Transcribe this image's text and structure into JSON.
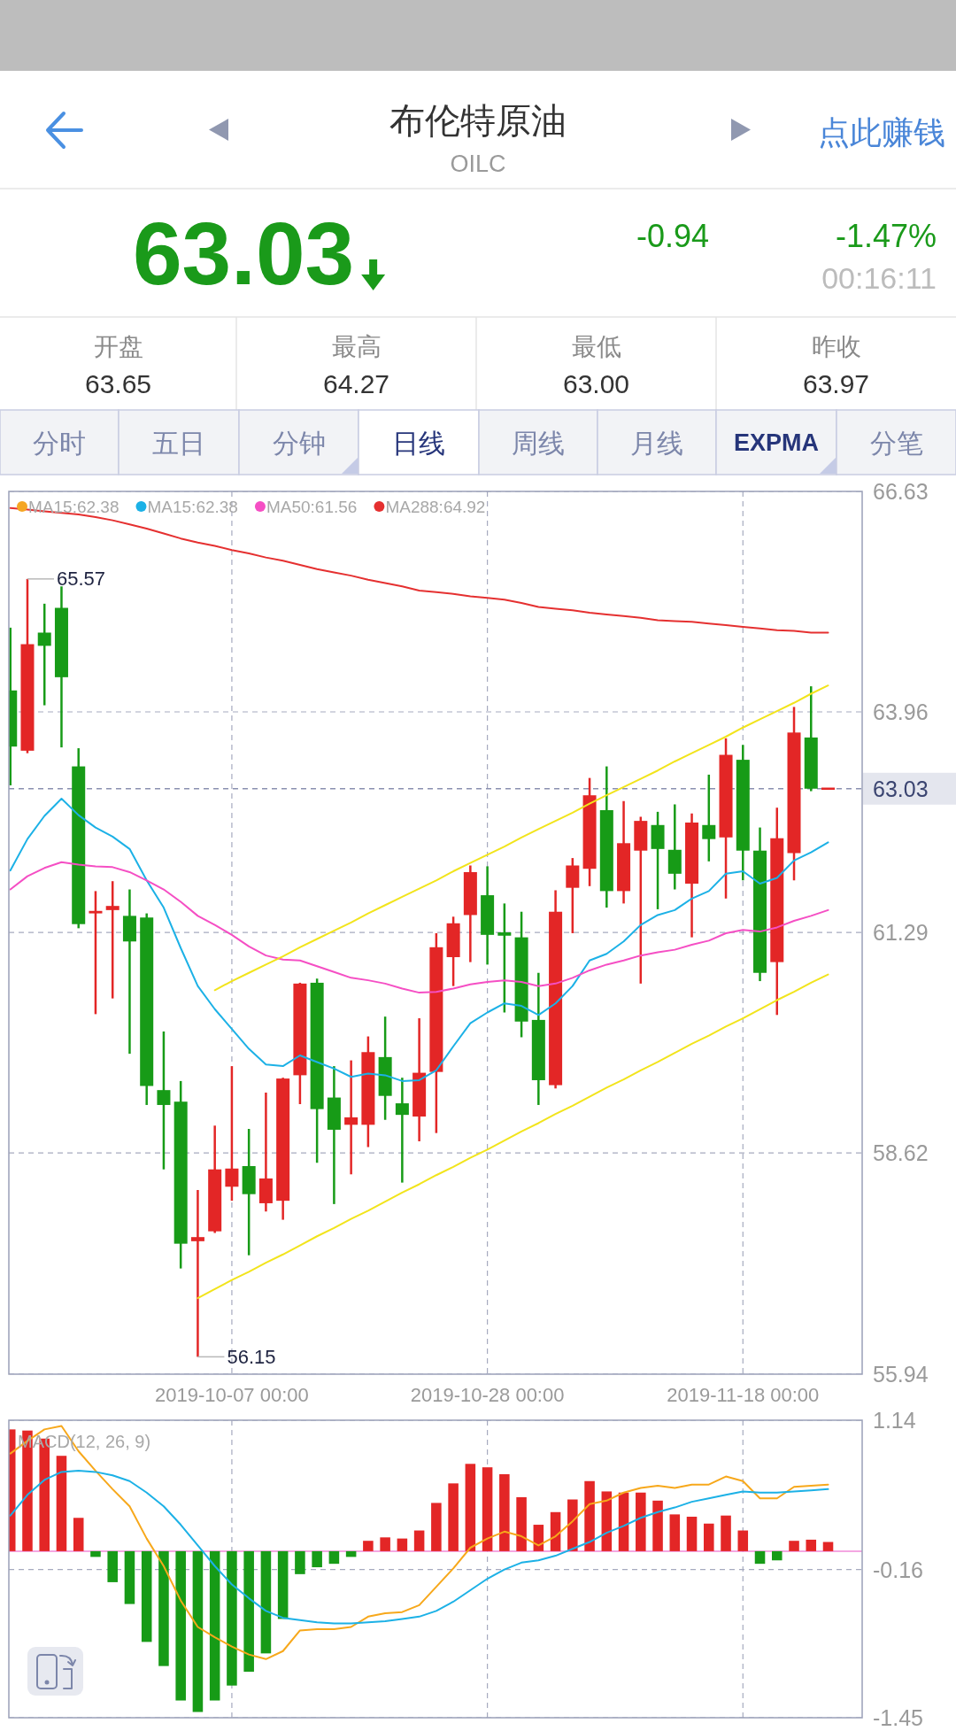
{
  "chart_data": [
    {
      "type": "other",
      "title": "布伦特原油",
      "subtitle": "OILC",
      "annotations": [
        "点此赚钱",
        "63.03",
        "-0.94",
        "-1.47%",
        "00:16:11",
        "开盘",
        "63.65",
        "最高",
        "64.27",
        "最低",
        "63.00",
        "昨收",
        "63.97",
        "分时",
        "五日",
        "分钟",
        "日线",
        "周线",
        "月线",
        "EXPMA",
        "分笔"
      ]
    },
    {
      "type": "candlestick",
      "categories": [
        null,
        null,
        null,
        null,
        null,
        null,
        null,
        null,
        null,
        null,
        null,
        null,
        null,
        "2019-10-07 00:00",
        null,
        null,
        null,
        null,
        null,
        null,
        null,
        null,
        null,
        null,
        null,
        null,
        null,
        null,
        "2019-10-28 00:00",
        null,
        null,
        null,
        null,
        null,
        null,
        null,
        null,
        null,
        null,
        null,
        null,
        null,
        null,
        "2019-11-18 00:00",
        null,
        null,
        null,
        null,
        null
      ],
      "ohlc": [
        [
          64.22,
          64.98,
          63.07,
          63.54
        ],
        [
          63.49,
          65.57,
          63.46,
          64.78
        ],
        [
          64.92,
          65.27,
          64.04,
          64.76
        ],
        [
          65.22,
          65.48,
          63.53,
          64.38
        ],
        [
          63.3,
          63.52,
          61.34,
          61.39
        ],
        [
          61.52,
          61.79,
          60.3,
          61.55
        ],
        [
          61.56,
          61.91,
          60.49,
          61.61
        ],
        [
          61.49,
          61.81,
          59.82,
          61.18
        ],
        [
          61.47,
          61.52,
          59.2,
          59.43
        ],
        [
          59.38,
          60.09,
          58.42,
          59.2
        ],
        [
          59.24,
          59.49,
          57.22,
          57.52
        ],
        [
          57.55,
          58.17,
          56.15,
          57.6
        ],
        [
          57.67,
          58.95,
          57.65,
          58.42
        ],
        [
          58.21,
          59.67,
          58.04,
          58.43
        ],
        [
          58.46,
          58.91,
          57.38,
          58.12
        ],
        [
          58.01,
          59.35,
          57.91,
          58.31
        ],
        [
          58.04,
          59.53,
          57.81,
          59.52
        ],
        [
          59.56,
          60.68,
          59.21,
          60.67
        ],
        [
          60.68,
          60.73,
          58.5,
          59.15
        ],
        [
          59.29,
          59.67,
          58.0,
          58.9
        ],
        [
          58.96,
          59.74,
          58.36,
          59.05
        ],
        [
          58.96,
          60.03,
          58.69,
          59.84
        ],
        [
          59.78,
          60.27,
          59.02,
          59.31
        ],
        [
          59.22,
          59.53,
          58.26,
          59.08
        ],
        [
          59.06,
          60.25,
          58.76,
          59.59
        ],
        [
          59.6,
          61.28,
          58.86,
          61.11
        ],
        [
          60.99,
          61.48,
          60.64,
          61.4
        ],
        [
          61.5,
          62.1,
          60.93,
          62.02
        ],
        [
          61.74,
          62.09,
          60.9,
          61.26
        ],
        [
          61.29,
          61.64,
          60.32,
          61.25
        ],
        [
          61.23,
          61.54,
          60.02,
          60.21
        ],
        [
          60.23,
          60.8,
          59.2,
          59.5
        ],
        [
          59.44,
          61.8,
          59.4,
          61.54
        ],
        [
          61.83,
          62.19,
          61.28,
          62.1
        ],
        [
          62.06,
          63.16,
          61.85,
          62.95
        ],
        [
          62.77,
          63.3,
          61.59,
          61.79
        ],
        [
          61.79,
          62.88,
          61.64,
          62.37
        ],
        [
          62.28,
          62.69,
          60.67,
          62.64
        ],
        [
          62.59,
          62.75,
          61.57,
          62.3
        ],
        [
          62.29,
          62.84,
          61.81,
          62.0
        ],
        [
          61.88,
          62.73,
          61.23,
          62.62
        ],
        [
          62.59,
          63.2,
          62.15,
          62.42
        ],
        [
          62.44,
          63.64,
          61.7,
          63.44
        ],
        [
          63.38,
          63.56,
          61.92,
          62.28
        ],
        [
          62.28,
          62.56,
          60.7,
          60.8
        ],
        [
          60.93,
          62.8,
          60.29,
          62.43
        ],
        [
          62.25,
          64.02,
          61.92,
          63.71
        ],
        [
          63.65,
          64.27,
          63.0,
          63.03
        ],
        [
          63.03,
          63.03,
          63.03,
          63.03
        ]
      ],
      "colors": [
        "#179b17",
        "#e32626",
        "#179b17",
        "#179b17",
        "#179b17",
        "#e32626",
        "#e32626",
        "#179b17",
        "#179b17",
        "#179b17",
        "#179b17",
        "#e32626",
        "#e32626",
        "#e32626",
        "#179b17",
        "#e32626",
        "#e32626",
        "#e32626",
        "#179b17",
        "#179b17",
        "#e32626",
        "#e32626",
        "#179b17",
        "#179b17",
        "#e32626",
        "#e32626",
        "#e32626",
        "#e32626",
        "#179b17",
        "#179b17",
        "#179b17",
        "#179b17",
        "#e32626",
        "#e32626",
        "#e32626",
        "#179b17",
        "#e32626",
        "#e32626",
        "#179b17",
        "#179b17",
        "#e32626",
        "#179b17",
        "#e32626",
        "#179b17",
        "#179b17",
        "#e32626",
        "#e32626",
        "#179b17",
        "#e32626"
      ],
      "series": [
        {
          "type": "line",
          "name": "MA15:62.38",
          "color": "#f5a623",
          "values": [
            null,
            null,
            null,
            null,
            null,
            null,
            null,
            null,
            null,
            null,
            null,
            null,
            null,
            null,
            null,
            null,
            null,
            null,
            null,
            null,
            null,
            null,
            null,
            null,
            null,
            null,
            null,
            null,
            null,
            null,
            null,
            null,
            null,
            null,
            null,
            null,
            null,
            null,
            null,
            null,
            null,
            null,
            null,
            null,
            null,
            null,
            null,
            null,
            null
          ]
        },
        {
          "type": "line",
          "name": "MA15:62.38",
          "color": "#1cb1e6",
          "values": [
            62.04,
            62.42,
            62.7,
            62.91,
            62.71,
            62.56,
            62.45,
            62.3,
            61.92,
            61.59,
            61.1,
            60.64,
            60.36,
            60.12,
            59.88,
            59.69,
            59.67,
            59.8,
            59.72,
            59.64,
            59.54,
            59.58,
            59.56,
            59.49,
            59.5,
            59.62,
            59.91,
            60.19,
            60.32,
            60.43,
            60.4,
            60.29,
            60.43,
            60.64,
            60.95,
            61.03,
            61.18,
            61.38,
            61.5,
            61.56,
            61.7,
            61.79,
            62.0,
            62.03,
            61.88,
            61.95,
            62.16,
            62.26,
            62.38
          ]
        },
        {
          "type": "line",
          "name": "MA50:61.56",
          "color": "#f54fc4",
          "values": [
            61.81,
            61.97,
            62.07,
            62.14,
            62.11,
            62.09,
            62.08,
            62.02,
            61.92,
            61.81,
            61.66,
            61.49,
            61.38,
            61.26,
            61.12,
            61.01,
            60.96,
            60.95,
            60.88,
            60.81,
            60.74,
            60.71,
            60.67,
            60.61,
            60.56,
            60.57,
            60.61,
            60.66,
            60.69,
            60.71,
            60.69,
            60.64,
            60.67,
            60.74,
            60.83,
            60.9,
            60.95,
            61.01,
            61.05,
            61.08,
            61.14,
            61.19,
            61.28,
            61.32,
            61.3,
            61.35,
            61.43,
            61.49,
            61.56
          ]
        },
        {
          "type": "line",
          "name": "MA288:64.92",
          "color": "#e53030",
          "values": [
            66.43,
            66.41,
            66.39,
            66.37,
            66.35,
            66.32,
            66.28,
            66.23,
            66.18,
            66.12,
            66.06,
            66.01,
            65.97,
            65.92,
            65.88,
            65.83,
            65.79,
            65.74,
            65.69,
            65.65,
            65.61,
            65.56,
            65.52,
            65.48,
            65.43,
            65.41,
            65.39,
            65.36,
            65.34,
            65.32,
            65.28,
            65.23,
            65.21,
            65.19,
            65.16,
            65.14,
            65.12,
            65.1,
            65.07,
            65.06,
            65.05,
            65.03,
            65.01,
            64.99,
            64.97,
            64.95,
            64.94,
            64.92,
            64.92
          ]
        },
        {
          "type": "line",
          "color": "#f2e41c",
          "values": [
            null,
            null,
            null,
            null,
            null,
            null,
            null,
            null,
            null,
            null,
            null,
            null,
            60.59,
            60.7,
            60.8,
            60.9,
            61.0,
            61.11,
            61.21,
            61.31,
            61.41,
            61.52,
            61.62,
            61.72,
            61.82,
            61.92,
            62.03,
            62.13,
            62.23,
            62.33,
            62.44,
            62.54,
            62.64,
            62.74,
            62.85,
            62.95,
            63.05,
            63.15,
            63.25,
            63.36,
            63.46,
            63.56,
            63.66,
            63.77,
            63.87,
            63.97,
            64.07,
            64.18,
            64.28
          ]
        },
        {
          "type": "line",
          "color": "#f2e41c",
          "values": [
            null,
            null,
            null,
            null,
            null,
            null,
            null,
            null,
            null,
            null,
            null,
            56.86,
            56.97,
            57.08,
            57.18,
            57.29,
            57.39,
            57.5,
            57.61,
            57.71,
            57.82,
            57.92,
            58.03,
            58.14,
            58.24,
            58.35,
            58.45,
            58.56,
            58.66,
            58.77,
            58.88,
            58.98,
            59.09,
            59.19,
            59.3,
            59.41,
            59.51,
            59.62,
            59.72,
            59.83,
            59.94,
            60.04,
            60.15,
            60.25,
            60.36,
            60.47,
            60.57,
            60.68,
            60.78
          ]
        }
      ],
      "ylim": [
        55.94,
        66.63
      ],
      "yticks": [
        66.63,
        63.96,
        61.29,
        58.62,
        55.94
      ],
      "grid": true,
      "legend": "top left",
      "ref_lines": [
        {
          "axis": "y",
          "value": 63.03,
          "label": "63.03",
          "color": "#8a90b0",
          "line_style": "dashed"
        }
      ],
      "annotations": [
        "65.57",
        "56.15"
      ]
    },
    {
      "type": "bar",
      "title": "MACD(12, 26, 9)",
      "categories": [
        null,
        null,
        null,
        null,
        null,
        null,
        null,
        null,
        null,
        null,
        null,
        null,
        null,
        "2019-10-07 00:00",
        null,
        null,
        null,
        null,
        null,
        null,
        null,
        null,
        null,
        null,
        null,
        null,
        null,
        null,
        "2019-10-28 00:00",
        null,
        null,
        null,
        null,
        null,
        null,
        null,
        null,
        null,
        null,
        null,
        null,
        null,
        null,
        "2019-11-18 00:00",
        null,
        null,
        null,
        null,
        null
      ],
      "series": [
        {
          "type": "bar",
          "values": [
            1.06,
            1.05,
            0.98,
            0.83,
            0.29,
            -0.05,
            -0.27,
            -0.46,
            -0.79,
            -1.0,
            -1.3,
            -1.4,
            -1.3,
            -1.17,
            -1.05,
            -0.89,
            -0.59,
            -0.2,
            -0.14,
            -0.11,
            -0.05,
            0.09,
            0.12,
            0.11,
            0.18,
            0.42,
            0.59,
            0.76,
            0.73,
            0.67,
            0.47,
            0.23,
            0.34,
            0.45,
            0.61,
            0.52,
            0.51,
            0.51,
            0.44,
            0.32,
            0.3,
            0.24,
            0.31,
            0.18,
            -0.11,
            -0.08,
            0.09,
            0.1,
            0.08
          ],
          "colors": [
            "#e32626",
            "#e32626",
            "#e32626",
            "#e32626",
            "#e32626",
            "#179b17",
            "#179b17",
            "#179b17",
            "#179b17",
            "#179b17",
            "#179b17",
            "#179b17",
            "#179b17",
            "#179b17",
            "#179b17",
            "#179b17",
            "#179b17",
            "#179b17",
            "#179b17",
            "#179b17",
            "#179b17",
            "#e32626",
            "#e32626",
            "#e32626",
            "#e32626",
            "#e32626",
            "#e32626",
            "#e32626",
            "#e32626",
            "#e32626",
            "#e32626",
            "#e32626",
            "#e32626",
            "#e32626",
            "#e32626",
            "#e32626",
            "#e32626",
            "#e32626",
            "#e32626",
            "#e32626",
            "#e32626",
            "#e32626",
            "#e32626",
            "#e32626",
            "#179b17",
            "#179b17",
            "#e32626",
            "#e32626",
            "#e32626"
          ]
        },
        {
          "type": "line",
          "color": "#f7a81b",
          "values": [
            0.85,
            0.96,
            1.06,
            1.09,
            0.87,
            0.7,
            0.54,
            0.39,
            0.11,
            -0.13,
            -0.43,
            -0.66,
            -0.75,
            -0.83,
            -0.9,
            -0.94,
            -0.87,
            -0.69,
            -0.68,
            -0.68,
            -0.66,
            -0.57,
            -0.54,
            -0.53,
            -0.47,
            -0.31,
            -0.15,
            0.03,
            0.11,
            0.17,
            0.13,
            0.05,
            0.13,
            0.26,
            0.41,
            0.44,
            0.51,
            0.55,
            0.57,
            0.55,
            0.58,
            0.58,
            0.65,
            0.61,
            0.46,
            0.46,
            0.56,
            0.57,
            0.58
          ]
        },
        {
          "type": "line",
          "color": "#1cb1e6",
          "values": [
            0.31,
            0.49,
            0.62,
            0.69,
            0.7,
            0.69,
            0.66,
            0.61,
            0.51,
            0.39,
            0.23,
            0.05,
            -0.13,
            -0.29,
            -0.41,
            -0.52,
            -0.58,
            -0.6,
            -0.62,
            -0.63,
            -0.63,
            -0.62,
            -0.61,
            -0.59,
            -0.57,
            -0.52,
            -0.44,
            -0.34,
            -0.24,
            -0.16,
            -0.1,
            -0.08,
            -0.04,
            0.02,
            0.08,
            0.16,
            0.22,
            0.29,
            0.34,
            0.38,
            0.43,
            0.46,
            0.49,
            0.52,
            0.51,
            0.51,
            0.52,
            0.53,
            0.54
          ]
        }
      ],
      "ylim": [
        -1.45,
        1.14
      ],
      "yticks": [
        1.14,
        -0.16,
        -1.45
      ],
      "grid": true,
      "tick_labels": "y",
      "ref_lines": [
        {
          "axis": "y",
          "value": 0,
          "color": "#f08ad8"
        }
      ]
    }
  ]
}
